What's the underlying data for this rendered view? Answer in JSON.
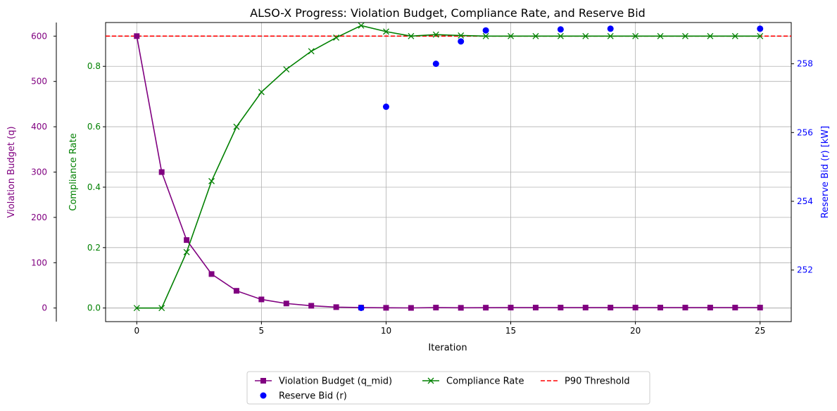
{
  "chart_data": {
    "type": "line",
    "title": "ALSO-X Progress: Violation Budget, Compliance Rate, and Reserve Bid",
    "xlabel": "Iteration",
    "xlim": [
      -1.25,
      26.25
    ],
    "xticks": [
      0,
      5,
      10,
      15,
      20,
      25
    ],
    "grid": true,
    "legend_position": "bottom-center",
    "axes": {
      "q": {
        "label": "Violation Budget (q)",
        "color": "#800080",
        "side": "left-outer",
        "lim": [
          -30,
          630
        ],
        "ticks": [
          0,
          100,
          200,
          300,
          400,
          500,
          600
        ]
      },
      "compliance": {
        "label": "Compliance Rate",
        "color": "#008000",
        "side": "left",
        "lim": [
          -0.045,
          0.945
        ],
        "ticks": [
          0.0,
          0.2,
          0.4,
          0.6,
          0.8
        ],
        "tick_labels": [
          "0.0",
          "0.2",
          "0.4",
          "0.6",
          "0.8"
        ]
      },
      "reserve": {
        "label": "Reserve Bid (r) [kW]",
        "color": "#0000ff",
        "side": "right",
        "lim": [
          250.5,
          259.2
        ],
        "ticks": [
          252,
          254,
          256,
          258
        ]
      }
    },
    "x": [
      0,
      1,
      2,
      3,
      4,
      5,
      6,
      7,
      8,
      9,
      10,
      11,
      12,
      13,
      14,
      15,
      16,
      17,
      18,
      19,
      20,
      21,
      22,
      23,
      24,
      25
    ],
    "series": [
      {
        "name": "Violation Budget (q_mid)",
        "axis": "q",
        "color": "#800080",
        "marker": "square",
        "line": "solid",
        "values": [
          600,
          300,
          150,
          75,
          38,
          19,
          10,
          5,
          2,
          1,
          0.5,
          0.3,
          1,
          0.5,
          0.8,
          1,
          1,
          1,
          1,
          1,
          1,
          1,
          1,
          1,
          1,
          1
        ]
      },
      {
        "name": "Compliance Rate",
        "axis": "compliance",
        "color": "#008000",
        "marker": "x",
        "line": "solid",
        "values": [
          0.0,
          0.0,
          0.185,
          0.42,
          0.6,
          0.715,
          0.79,
          0.85,
          0.895,
          0.935,
          0.915,
          0.9,
          0.905,
          0.902,
          0.9,
          0.9,
          0.9,
          0.9,
          0.9,
          0.9,
          0.9,
          0.9,
          0.9,
          0.9,
          0.9,
          0.9
        ]
      },
      {
        "name": "Reserve Bid (r)",
        "axis": "reserve",
        "color": "#0000ff",
        "marker": "circle",
        "line": "none",
        "x": [
          9,
          10,
          12,
          13,
          14,
          17,
          19,
          25
        ],
        "values": [
          250.9,
          256.75,
          258.0,
          258.65,
          258.97,
          259.0,
          259.02,
          259.02
        ]
      }
    ],
    "reference_lines": [
      {
        "name": "P90 Threshold",
        "axis": "compliance",
        "value": 0.9,
        "color": "#ff0000",
        "style": "dashed"
      }
    ],
    "legend_entries": [
      {
        "label": "Violation Budget (q_mid)",
        "series": 0
      },
      {
        "label": "Compliance Rate",
        "series": 1
      },
      {
        "label": "P90 Threshold",
        "reference": 0
      },
      {
        "label": "Reserve Bid (r)",
        "series": 2
      }
    ]
  }
}
